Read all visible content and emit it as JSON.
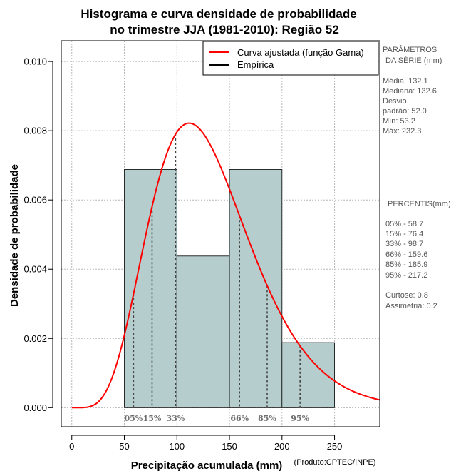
{
  "chart_data": {
    "type": "bar",
    "title_line1": "Histograma e curva densidade de probabilidade",
    "title_line2": "no trimestre JJA (1981-2010): Região 52",
    "xlabel": "Precipitação acumulada (mm)",
    "ylabel": "Densidade de probabilidade",
    "credit": "(Produto:CPTEC/INPE)",
    "xlim": [
      -10,
      293
    ],
    "ylim": [
      -0.00055,
      0.0106
    ],
    "x_ticks": [
      0,
      50,
      100,
      150,
      200,
      250
    ],
    "x_tick_labels": [
      "0",
      "50",
      "100",
      "150",
      "200",
      "250"
    ],
    "y_ticks": [
      0.0,
      0.002,
      0.004,
      0.006,
      0.008,
      0.01
    ],
    "y_tick_labels": [
      "0.000",
      "0.002",
      "0.004",
      "0.006",
      "0.008",
      "0.010"
    ],
    "grid": true,
    "histogram": [
      {
        "start": 50,
        "end": 100,
        "density": 0.00688
      },
      {
        "start": 100,
        "end": 150,
        "density": 0.00438
      },
      {
        "start": 150,
        "end": 200,
        "density": 0.00688
      },
      {
        "start": 200,
        "end": 250,
        "density": 0.00188
      }
    ],
    "bar_color": "#b5cdcd",
    "curve": {
      "name": "Curva ajustada (função Gama)",
      "color": "#ff0000",
      "shape": 6.45,
      "scale": 20.48,
      "x_from": 0,
      "x_to": 293
    },
    "empirical": {
      "name": "Empírica",
      "color": "#000000"
    },
    "percentile_markers": [
      {
        "label": "05%",
        "value": 58.7
      },
      {
        "label": "15%",
        "value": 76.4
      },
      {
        "label": "33%",
        "value": 98.7
      },
      {
        "label": "66%",
        "value": 159.6
      },
      {
        "label": "85%",
        "value": 185.9
      },
      {
        "label": "95%",
        "value": 217.2
      }
    ],
    "legend": {
      "position": "top-right",
      "entries": [
        {
          "label": "Curva ajustada (função Gama)",
          "color": "#ff0000"
        },
        {
          "label": "Empírica",
          "color": "#000000"
        }
      ]
    }
  },
  "side_panel": {
    "params_title_1": "PARÂMETROS",
    "params_title_2": "DA SÉRIE (mm)",
    "media": "Média:  132.1",
    "mediana": "Mediana:  132.6",
    "desvio_1": "Desvio",
    "desvio_2": "padrão:  52.0",
    "min": "Mín:  53.2",
    "max": "Máx:  232.3",
    "percentis_title": "PERCENTIS(mm)",
    "p05": "05% -   58.7",
    "p15": "15% -   76.4",
    "p33": "33% -   98.7",
    "p66": "66% -   159.6",
    "p85": "85% -   185.9",
    "p95": "95% -   217.2",
    "curtose": "Curtose:  0.8",
    "assimetria": "Assimetria:  0.2"
  }
}
